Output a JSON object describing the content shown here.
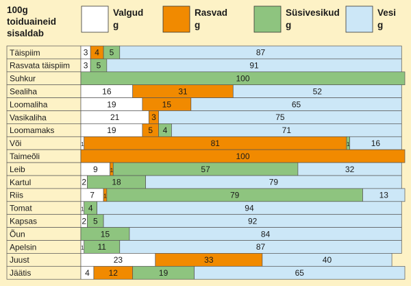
{
  "chart_data": {
    "type": "bar",
    "stacked": true,
    "orientation": "horizontal",
    "title": "100g toiduaineid sisaldab",
    "legend_position": "top",
    "grid": false,
    "xlim": [
      0,
      100
    ],
    "categories": [
      "Täispiim",
      "Rasvata täispiim",
      "Suhkur",
      "Sealiha",
      "Loomaliha",
      "Vasikaliha",
      "Loomamaks",
      "Või",
      "Taimeõli",
      "Leib",
      "Kartul",
      "Riis",
      "Tomat",
      "Kapsas",
      "Õun",
      "Apelsin",
      "Juust",
      "Jäätis"
    ],
    "series": [
      {
        "name": "Valgud g",
        "color": "#ffffff",
        "values": [
          3,
          3,
          0,
          16,
          19,
          21,
          19,
          1,
          0,
          9,
          2,
          7,
          1,
          2,
          0,
          1,
          23,
          4
        ]
      },
      {
        "name": "Rasvad g",
        "color": "#f18a00",
        "values": [
          4,
          0,
          0,
          31,
          15,
          3,
          5,
          81,
          100,
          1,
          0,
          1,
          0,
          0,
          0,
          0,
          33,
          12
        ]
      },
      {
        "name": "Süsivesikud g",
        "color": "#8ec47f",
        "values": [
          5,
          5,
          100,
          0,
          0,
          0,
          4,
          1,
          0,
          57,
          18,
          79,
          4,
          5,
          15,
          11,
          0,
          19
        ]
      },
      {
        "name": "Vesi g",
        "color": "#cce7f7",
        "values": [
          87,
          91,
          0,
          52,
          65,
          75,
          71,
          16,
          0,
          32,
          79,
          13,
          94,
          92,
          84,
          87,
          40,
          65
        ]
      }
    ]
  }
}
